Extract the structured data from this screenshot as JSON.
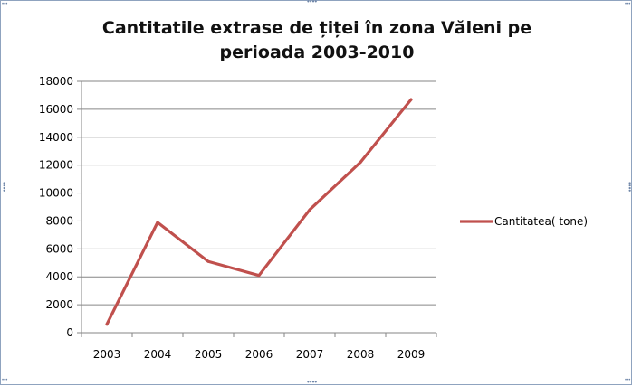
{
  "chart_data": {
    "type": "line",
    "title_line1": "Cantitatile  extrase de țiței în zona Văleni  pe",
    "title_line2": "perioada 2003-2010",
    "categories": [
      "2003",
      "2004",
      "2005",
      "2006",
      "2007",
      "2008",
      "2009"
    ],
    "series": [
      {
        "name": "Cantitatea( tone)",
        "values": [
          600,
          7900,
          5100,
          4100,
          8800,
          12200,
          16700
        ],
        "color": "#c0504d"
      }
    ],
    "ylim": [
      0,
      18000
    ],
    "yticks": [
      0,
      2000,
      4000,
      6000,
      8000,
      10000,
      12000,
      14000,
      16000,
      18000
    ],
    "grid": "horizontal",
    "legend_position": "right"
  }
}
